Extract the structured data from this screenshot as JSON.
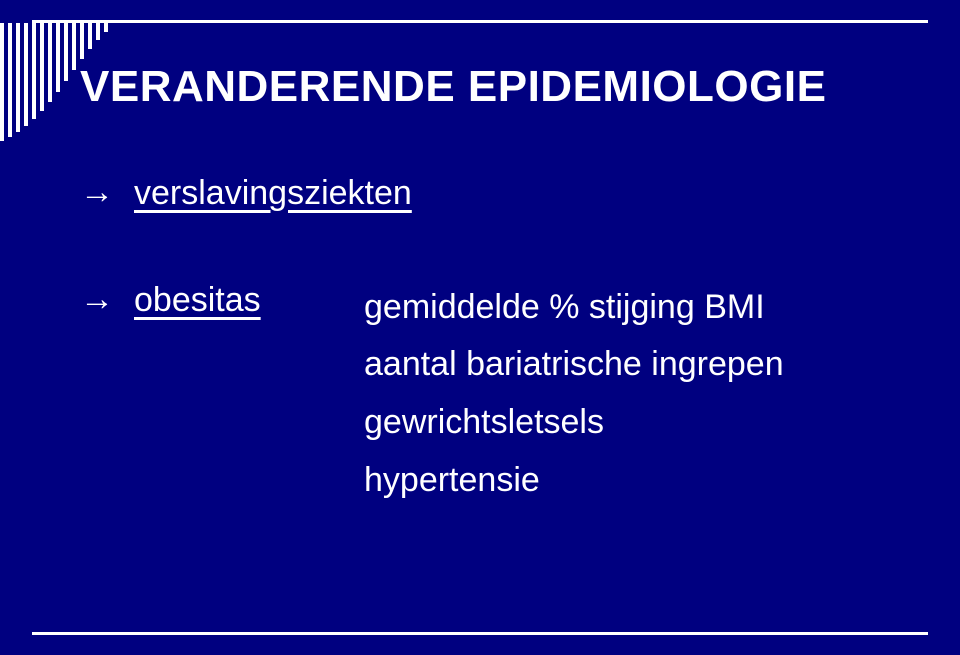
{
  "colors": {
    "background": "#000080",
    "text": "#ffffff",
    "rule": "#ffffff"
  },
  "title": "VERANDERENDE EPIDEMIOLOGIE",
  "arrow": "→",
  "items": [
    {
      "label": "verslavingsziekten",
      "underline": true
    }
  ],
  "obesitas": {
    "label": "obesitas",
    "lines": [
      "gemiddelde % stijging BMI",
      "aantal bariatrische ingrepen",
      "gewrichtsletsels",
      "hypertensie"
    ]
  },
  "corner": {
    "bar_count": 14,
    "heights": [
      118,
      114,
      109,
      103,
      96,
      88,
      79,
      69,
      58,
      47,
      36,
      26,
      17,
      9
    ]
  }
}
